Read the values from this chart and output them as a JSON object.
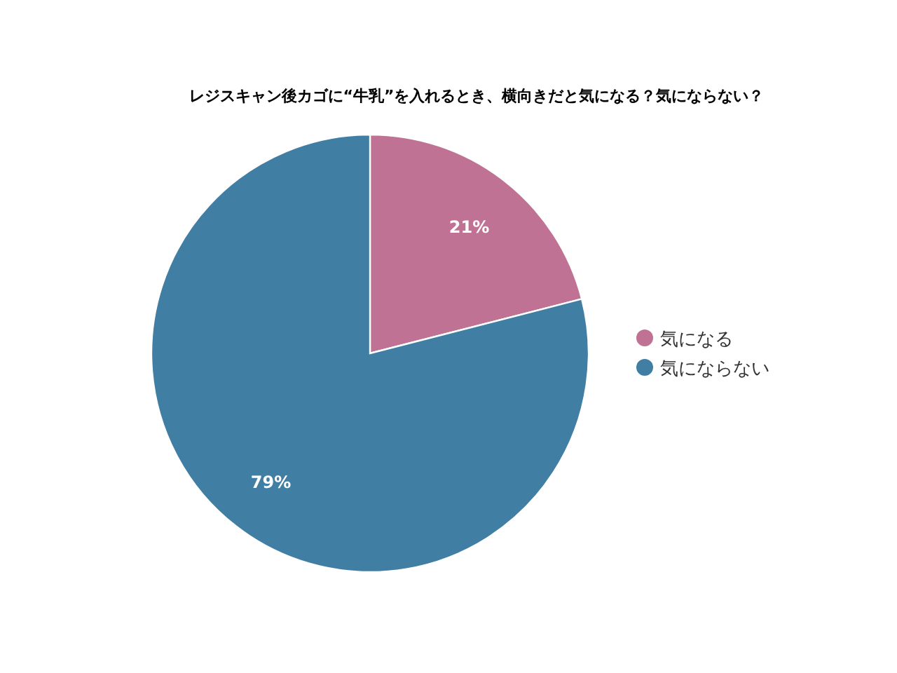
{
  "chart_data": {
    "type": "pie",
    "title": "レジスキャン後カゴに“牛乳”を入れるとき、横向きだと気になる？気にならない？",
    "categories": [
      "気になる",
      "気にならない"
    ],
    "values": [
      21,
      79
    ],
    "colors": [
      "#c07294",
      "#417ea3"
    ],
    "value_labels": [
      "21%",
      "79%"
    ],
    "legend": "right"
  }
}
